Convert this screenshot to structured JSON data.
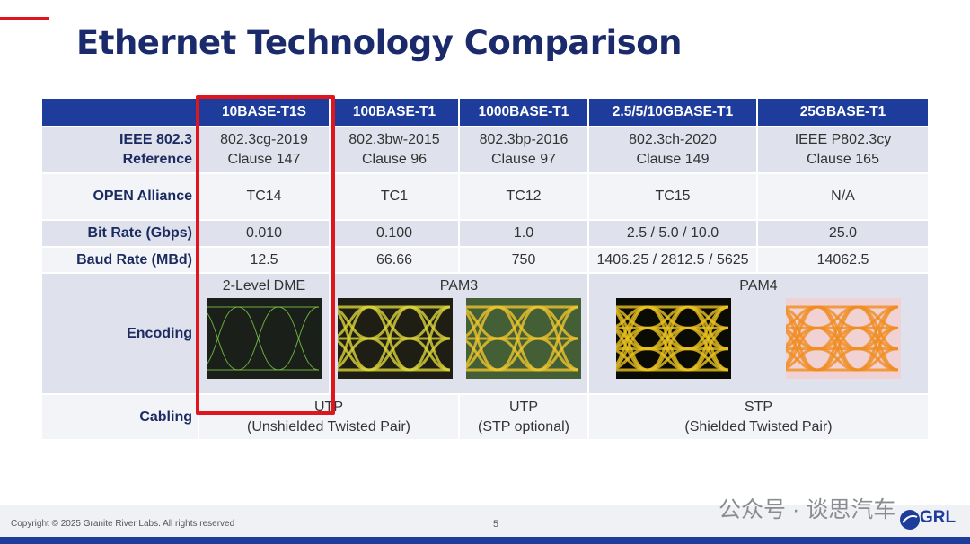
{
  "header": {
    "title": "Ethernet Technology Comparison"
  },
  "table": {
    "columns": [
      "10BASE-T1S",
      "100BASE-T1",
      "1000BASE-T1",
      "2.5/5/10GBASE-T1",
      "25GBASE-T1"
    ],
    "rows": [
      {
        "label": [
          "IEEE 802.3",
          "Reference"
        ],
        "cells": [
          [
            "802.3cg-2019",
            "Clause 147"
          ],
          [
            "802.3bw-2015",
            "Clause 96"
          ],
          [
            "802.3bp-2016",
            "Clause 97"
          ],
          [
            "802.3ch-2020",
            "Clause 149"
          ],
          [
            "IEEE P802.3cy",
            "Clause 165"
          ]
        ]
      },
      {
        "label": [
          "OPEN Alliance"
        ],
        "cells": [
          [
            "TC14"
          ],
          [
            "TC1"
          ],
          [
            "TC12"
          ],
          [
            "TC15"
          ],
          [
            "N/A"
          ]
        ]
      },
      {
        "label": [
          "Bit Rate (Gbps)"
        ],
        "cells": [
          [
            "0.010"
          ],
          [
            "0.100"
          ],
          [
            "1.0"
          ],
          [
            "2.5 / 5.0 / 10.0"
          ],
          [
            "25.0"
          ]
        ]
      },
      {
        "label": [
          "Baud Rate (MBd)"
        ],
        "cells": [
          [
            "12.5"
          ],
          [
            "66.66"
          ],
          [
            "750"
          ],
          [
            "1406.25 / 2812.5 / 5625"
          ],
          [
            "14062.5"
          ]
        ]
      },
      {
        "label": [
          "Encoding"
        ],
        "cells": [
          [
            "2-Level DME"
          ],
          [
            "PAM3"
          ],
          [
            "PAM4"
          ]
        ]
      },
      {
        "label": [
          "Cabling"
        ],
        "cells": [
          [
            "UTP",
            "(Unshielded Twisted Pair)"
          ],
          [
            "UTP",
            "(STP optional)"
          ],
          [
            "STP",
            "(Shielded Twisted Pair)"
          ]
        ]
      }
    ]
  },
  "footer": {
    "copyright": "Copyright © 2025 Granite River Labs. All rights reserved",
    "page": "5",
    "watermark": "公众号 · 谈思汽车",
    "logo": "GRL"
  }
}
